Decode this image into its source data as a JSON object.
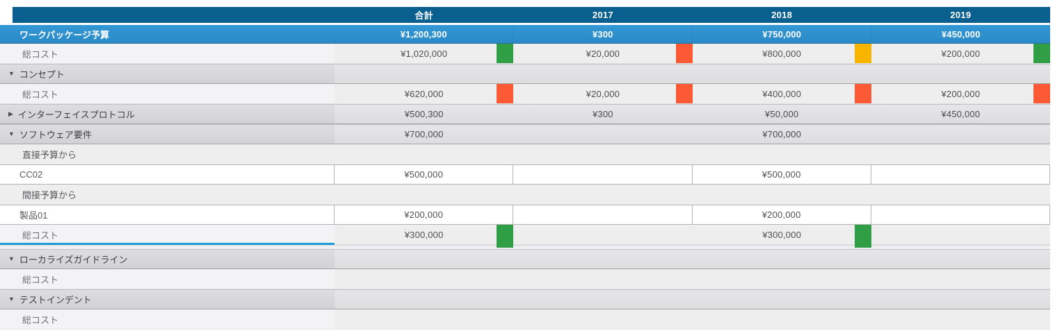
{
  "colors": {
    "header_blue": "#095f8d",
    "budget_row_blue": "#2e92cf",
    "status_green": "#2f9e44",
    "status_red": "#fb5a35",
    "status_yellow": "#f9b400",
    "selection_blue": "#1b9cd8"
  },
  "table": {
    "columns": [
      "合計",
      "2017",
      "2018",
      "2019"
    ],
    "rows": [
      {
        "id": "work-package-budget",
        "type": "budget",
        "label": "ワークパッケージ予算",
        "values": [
          "¥1,200,300",
          "¥300",
          "¥750,000",
          "¥450,000"
        ],
        "indicators": [
          null,
          null,
          null,
          null
        ]
      },
      {
        "id": "total-cost-summary",
        "type": "total",
        "label": "総コスト",
        "values": [
          "¥1,020,000",
          "¥20,000",
          "¥800,000",
          "¥200,000"
        ],
        "indicators": [
          "green",
          "red",
          "yellow",
          "green"
        ]
      },
      {
        "id": "group-concept",
        "type": "group",
        "expanded": true,
        "label": "コンセプト",
        "values": [
          "",
          "",
          "",
          ""
        ],
        "indicators": [
          null,
          null,
          null,
          null
        ]
      },
      {
        "id": "total-cost-concept",
        "type": "total",
        "label": "総コスト",
        "values": [
          "¥620,000",
          "¥20,000",
          "¥400,000",
          "¥200,000"
        ],
        "indicators": [
          "red",
          "red",
          "red",
          "red"
        ]
      },
      {
        "id": "group-interface-protocol",
        "type": "group",
        "expanded": false,
        "label": "インターフェイスプロトコル",
        "values": [
          "¥500,300",
          "¥300",
          "¥50,000",
          "¥450,000"
        ],
        "indicators": [
          null,
          null,
          null,
          null
        ]
      },
      {
        "id": "group-software-requirements",
        "type": "group",
        "expanded": true,
        "label": "ソフトウェア要件",
        "values": [
          "¥700,000",
          "",
          "¥700,000",
          ""
        ],
        "indicators": [
          null,
          null,
          null,
          null
        ]
      },
      {
        "id": "subheader-direct-budget",
        "type": "subheader",
        "label": "直接予算から",
        "values": [
          "",
          "",
          "",
          ""
        ],
        "indicators": [
          null,
          null,
          null,
          null
        ]
      },
      {
        "id": "entry-cc02",
        "type": "input",
        "label": "CC02",
        "values": [
          "¥500,000",
          "",
          "¥500,000",
          ""
        ],
        "indicators": [
          null,
          null,
          null,
          null
        ]
      },
      {
        "id": "subheader-indirect-budget",
        "type": "subheader",
        "label": "間接予算から",
        "values": [
          "",
          "",
          "",
          ""
        ],
        "indicators": [
          null,
          null,
          null,
          null
        ]
      },
      {
        "id": "entry-product01",
        "type": "input",
        "label": "製品01",
        "values": [
          "¥200,000",
          "",
          "¥200,000",
          ""
        ],
        "indicators": [
          null,
          null,
          null,
          null
        ]
      },
      {
        "id": "total-cost-software",
        "type": "total",
        "selected": true,
        "label": "総コスト",
        "values": [
          "¥300,000",
          "",
          "¥300,000",
          ""
        ],
        "indicators": [
          "green",
          null,
          "green",
          null
        ],
        "bleed": true
      },
      {
        "id": "separator",
        "type": "separator"
      },
      {
        "id": "group-localization-guideline",
        "type": "group",
        "expanded": true,
        "label": "ローカライズガイドライン",
        "values": [
          "",
          "",
          "",
          ""
        ],
        "indicators": [
          null,
          null,
          null,
          null
        ]
      },
      {
        "id": "total-cost-localization",
        "type": "total",
        "label": "総コスト",
        "values": [
          "",
          "",
          "",
          ""
        ],
        "indicators": [
          null,
          null,
          null,
          null
        ]
      },
      {
        "id": "group-test-indent",
        "type": "group",
        "expanded": true,
        "label": "テストインデント",
        "values": [
          "",
          "",
          "",
          ""
        ],
        "indicators": [
          null,
          null,
          null,
          null
        ]
      },
      {
        "id": "total-cost-test",
        "type": "total",
        "label": "総コスト",
        "values": [
          "",
          "",
          "",
          ""
        ],
        "indicators": [
          null,
          null,
          null,
          null
        ]
      }
    ]
  },
  "icons": {
    "expanded_triangle": "▼",
    "collapsed_triangle": "▶"
  }
}
